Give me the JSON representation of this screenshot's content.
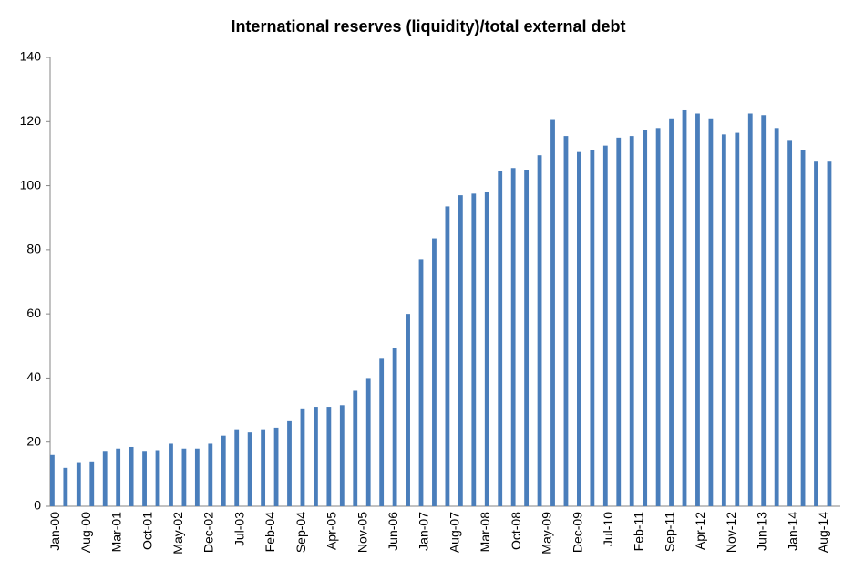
{
  "chart_data": {
    "type": "bar",
    "title": "International reserves (liquidity)/total external debt",
    "categories": [
      "Jan-00",
      null,
      null,
      null,
      null,
      null,
      null,
      "Aug-00",
      null,
      null,
      null,
      null,
      null,
      null,
      "Mar-01",
      null,
      null,
      null,
      null,
      null,
      null,
      "Oct-01",
      null,
      null,
      null,
      null,
      null,
      null,
      "May-02",
      null,
      null,
      null,
      null,
      null,
      null,
      "Dec-02",
      null,
      null,
      null,
      null,
      null,
      null,
      "Jul-03",
      null,
      null,
      null,
      null,
      null,
      null,
      "Feb-04",
      null,
      null,
      null,
      null,
      null,
      null,
      "Sep-04",
      null,
      null,
      null,
      null,
      null,
      null,
      "Apr-05",
      null,
      null,
      null,
      null,
      null,
      null,
      "Nov-05",
      null,
      null,
      null,
      null,
      null,
      null,
      "Jun-06",
      null,
      null,
      null,
      null,
      null,
      null,
      "Jan-07",
      null,
      null,
      null,
      null,
      null,
      null,
      "Aug-07",
      null,
      null,
      null,
      null,
      null,
      null,
      "Mar-08",
      null,
      null,
      null,
      null,
      null,
      null,
      "Oct-08",
      null,
      null,
      null,
      null,
      null,
      null,
      "May-09",
      null,
      null,
      null,
      null,
      null,
      null,
      "Dec-09",
      null,
      null,
      null,
      null,
      null,
      null,
      "Jul-10",
      null,
      null,
      null,
      null,
      null,
      null,
      "Feb-11",
      null,
      null,
      null,
      null,
      null,
      null,
      "Sep-11",
      null,
      null,
      null,
      null,
      null,
      null,
      "Apr-12",
      null,
      null,
      null,
      null,
      null,
      null,
      "Nov-12",
      null,
      null,
      null,
      null,
      null,
      null,
      "Jun-13",
      null,
      null,
      null,
      null,
      null,
      null,
      "Jan-14",
      null,
      null,
      null,
      null,
      null,
      null,
      "Aug-14",
      null,
      null,
      null,
      null
    ],
    "values": [
      16,
      null,
      null,
      12,
      null,
      null,
      13.5,
      null,
      null,
      14,
      null,
      null,
      17,
      null,
      null,
      18,
      null,
      null,
      18.5,
      null,
      null,
      17,
      null,
      null,
      17.5,
      null,
      null,
      19.5,
      null,
      null,
      18,
      null,
      null,
      18,
      null,
      null,
      19.5,
      null,
      null,
      22,
      null,
      null,
      24,
      null,
      null,
      23,
      null,
      null,
      24,
      null,
      null,
      24.5,
      null,
      null,
      26.5,
      null,
      null,
      30.5,
      null,
      null,
      31,
      null,
      null,
      31,
      null,
      null,
      31.5,
      null,
      null,
      36,
      null,
      null,
      40,
      null,
      null,
      46,
      null,
      null,
      49.5,
      null,
      null,
      60,
      null,
      null,
      77,
      null,
      null,
      83.5,
      null,
      null,
      93.5,
      null,
      null,
      97,
      null,
      null,
      97.5,
      null,
      null,
      98,
      null,
      null,
      104.5,
      null,
      null,
      105.5,
      null,
      null,
      105,
      null,
      null,
      109.5,
      null,
      null,
      120.5,
      null,
      null,
      115.5,
      null,
      null,
      110.5,
      null,
      null,
      111,
      null,
      null,
      112.5,
      null,
      null,
      115,
      null,
      null,
      115.5,
      null,
      null,
      117.5,
      null,
      null,
      118,
      null,
      null,
      121,
      null,
      null,
      123.5,
      null,
      null,
      122.5,
      null,
      null,
      121,
      null,
      null,
      116,
      null,
      null,
      116.5,
      null,
      null,
      122.5,
      null,
      null,
      122,
      null,
      null,
      118,
      null,
      null,
      114,
      null,
      null,
      111,
      null,
      null,
      107.5,
      null,
      null,
      107.5,
      null,
      null
    ],
    "color": "#4a7ebb",
    "ylim": [
      0,
      140
    ],
    "yticks": [
      0,
      20,
      40,
      60,
      80,
      100,
      120,
      140
    ],
    "grid": false
  }
}
